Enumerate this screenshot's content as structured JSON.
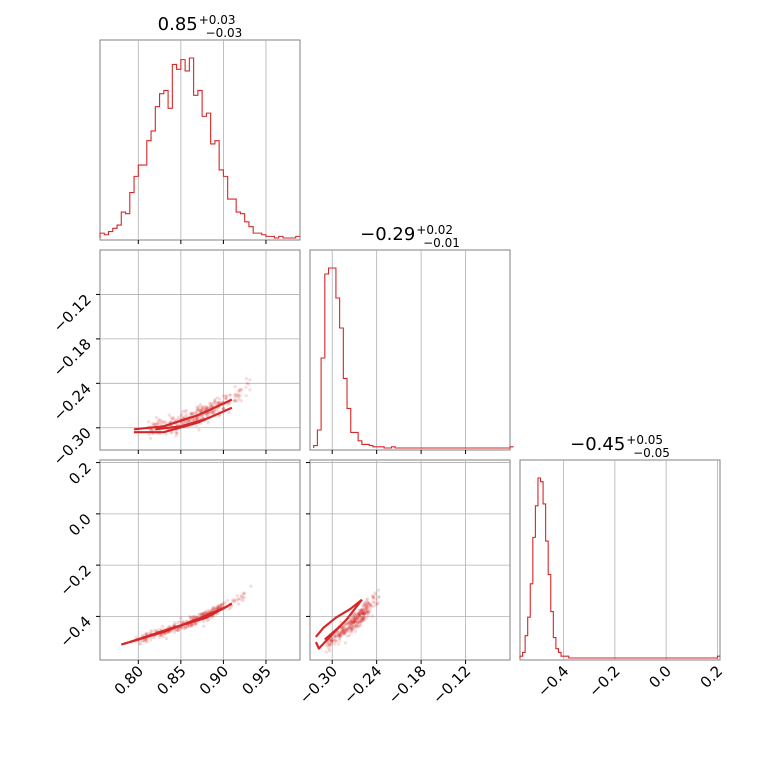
{
  "colors": {
    "series": "#d62728",
    "grid": "#b0b0b0",
    "frame": "#808080"
  },
  "chart_data": {
    "type": "corner",
    "parameters": [
      {
        "title": {
          "median": "0.85",
          "plus": "+0.03",
          "minus": "−0.03"
        },
        "range": [
          0.755,
          0.99
        ],
        "ticks": [
          0.8,
          0.85,
          0.9,
          0.95
        ],
        "tick_labels": [
          "0.80",
          "0.85",
          "0.90",
          "0.95"
        ],
        "hist": {
          "edges_start": 0.755,
          "bin_width": 0.005,
          "counts": [
            3,
            2,
            4,
            6,
            8,
            16,
            15,
            28,
            38,
            45,
            45,
            60,
            66,
            81,
            89,
            91,
            80,
            107,
            104,
            110,
            103,
            111,
            88,
            91,
            75,
            77,
            58,
            60,
            42,
            38,
            24,
            24,
            16,
            15,
            10,
            7,
            3,
            3,
            2,
            1,
            1,
            0,
            1,
            0,
            0,
            0,
            1
          ]
        }
      },
      {
        "title": {
          "median": "−0.29",
          "plus": "+0.02",
          "minus": "−0.01"
        },
        "range": [
          -0.33,
          -0.06
        ],
        "ticks": [
          -0.3,
          -0.24,
          -0.18,
          -0.12
        ],
        "tick_labels": [
          "−0.30",
          "−0.24",
          "−0.18",
          "−0.12"
        ],
        "hist": {
          "edges_start": -0.325,
          "bin_width": 0.005,
          "counts": [
            2,
            15,
            75,
            145,
            150,
            150,
            125,
            100,
            58,
            33,
            13,
            13,
            6,
            3,
            3,
            2,
            1,
            1,
            1,
            0,
            0,
            1,
            0,
            0,
            0,
            0,
            0,
            0,
            0,
            0,
            0,
            0,
            0,
            0,
            0,
            0,
            0,
            0,
            0,
            0,
            0,
            0,
            0,
            0,
            0,
            0,
            0,
            0,
            0,
            0,
            0,
            0,
            0,
            1
          ]
        }
      },
      {
        "title": {
          "median": "−0.45",
          "plus": "+0.05",
          "minus": "−0.05"
        },
        "range": [
          -0.57,
          0.21
        ],
        "ticks": [
          -0.4,
          -0.2,
          0.0,
          0.2
        ],
        "tick_labels": [
          "−0.4",
          "−0.2",
          "0.0",
          "0.2"
        ],
        "hist": {
          "edges_start": -0.57,
          "bin_width": 0.01,
          "counts": [
            1,
            3,
            12,
            22,
            40,
            65,
            82,
            97,
            95,
            83,
            63,
            45,
            25,
            11,
            5,
            3,
            1,
            1,
            1,
            0,
            0,
            0,
            0,
            0,
            0,
            0,
            0,
            0,
            0,
            0,
            0,
            0,
            0,
            0,
            0,
            0,
            0,
            0,
            0,
            0,
            0,
            0,
            0,
            0,
            0,
            0,
            0,
            0,
            0,
            0,
            0,
            0,
            0,
            0,
            0,
            0,
            0,
            0,
            0,
            0,
            0,
            0,
            0,
            0,
            0,
            0,
            0,
            0,
            0,
            0,
            0,
            0,
            0,
            0,
            0,
            0,
            0,
            1
          ]
        }
      }
    ],
    "pairs": [
      {
        "x_param": 0,
        "y_param": 1,
        "relation": {
          "x_points": [
            0.79,
            0.85,
            0.91,
            0.96
          ],
          "y_points": [
            -0.306,
            -0.294,
            -0.262,
            -0.213
          ],
          "spread": 0.012
        },
        "contours": [
          {
            "x": [
              0.795,
              0.83,
              0.87,
              0.91
            ],
            "y": [
              -0.302,
              -0.298,
              -0.283,
              -0.262
            ]
          },
          {
            "x": [
              0.795,
              0.83,
              0.87,
              0.91
            ],
            "y": [
              -0.306,
              -0.306,
              -0.293,
              -0.273
            ]
          },
          {
            "x": [
              0.82,
              0.85,
              0.88
            ],
            "y": [
              -0.302,
              -0.298,
              -0.288
            ]
          }
        ]
      },
      {
        "x_param": 0,
        "y_param": 2,
        "relation": {
          "x_points": [
            0.775,
            0.85,
            0.92,
            0.96
          ],
          "y_points": [
            -0.52,
            -0.44,
            -0.33,
            -0.24
          ],
          "spread": 0.02
        },
        "contours": [
          {
            "x": [
              0.78,
              0.83,
              0.87,
              0.905
            ],
            "y": [
              -0.51,
              -0.46,
              -0.41,
              -0.36
            ]
          },
          {
            "x": [
              0.79,
              0.84,
              0.88,
              0.91
            ],
            "y": [
              -0.5,
              -0.445,
              -0.405,
              -0.35
            ]
          }
        ]
      },
      {
        "x_param": 1,
        "y_param": 2,
        "relation": {
          "x_points": [
            -0.32,
            -0.3,
            -0.27,
            -0.22
          ],
          "y_points": [
            -0.54,
            -0.49,
            -0.42,
            -0.28
          ],
          "spread": 0.035
        },
        "contours": [
          {
            "x": [
              -0.322,
              -0.312,
              -0.295,
              -0.275,
              -0.26
            ],
            "y": [
              -0.48,
              -0.445,
              -0.405,
              -0.37,
              -0.335
            ]
          },
          {
            "x": [
              -0.322,
              -0.318,
              -0.3,
              -0.28,
              -0.26
            ],
            "y": [
              -0.5,
              -0.525,
              -0.47,
              -0.41,
              -0.335
            ]
          },
          {
            "x": [
              -0.31,
              -0.3,
              -0.29
            ],
            "y": [
              -0.49,
              -0.465,
              -0.44
            ]
          }
        ]
      }
    ],
    "grid": true
  }
}
